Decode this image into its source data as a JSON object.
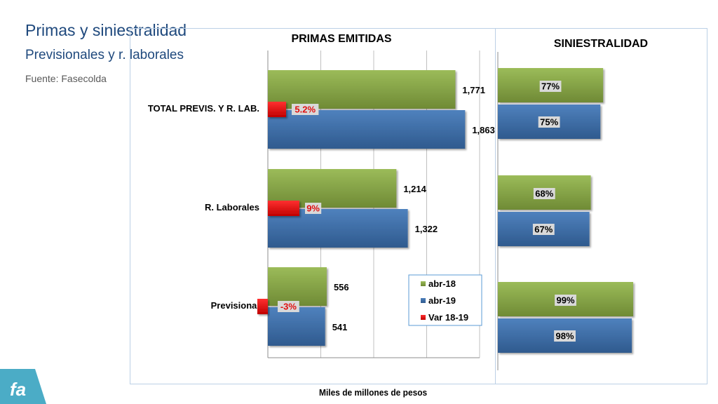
{
  "header": {
    "title": "Primas y siniestralidad",
    "subtitle": "Previsionales y r. laborales",
    "source": "Fuente: Fasecolda"
  },
  "footer": {
    "axis_caption": "Miles de millones de pesos"
  },
  "colors": {
    "green": "#77933c",
    "blue": "#376092",
    "red": "#e01010",
    "title_blue": "#1f497d",
    "label_bg": "#d9d9d9"
  },
  "chart_data": [
    {
      "type": "bar",
      "orientation": "horizontal",
      "title": "PRIMAS EMITIDAS",
      "categories": [
        "TOTAL  PREVIS. Y R. LAB.",
        "R. Laborales",
        "Previsional"
      ],
      "series": [
        {
          "name": "abr-18",
          "color": "#77933c",
          "values": [
            1771,
            1214,
            556
          ],
          "labels": [
            "1,771",
            "1,214",
            "556"
          ]
        },
        {
          "name": "abr-19",
          "color": "#376092",
          "values": [
            1863,
            1322,
            541
          ],
          "labels": [
            "1,863",
            "1,322",
            "541"
          ]
        },
        {
          "name": "Var 18-19",
          "color": "#e01010",
          "values": [
            5.2,
            9,
            -3
          ],
          "labels": [
            "5.2%",
            "9%",
            "-3%"
          ]
        }
      ],
      "xlim": [
        0,
        2000
      ],
      "grid": true,
      "legend": "bottom-right"
    },
    {
      "type": "bar",
      "orientation": "horizontal",
      "title": "SINIESTRALIDAD",
      "categories": [
        "TOTAL  PREVIS. Y R. LAB.",
        "R. Laborales",
        "Previsional"
      ],
      "series": [
        {
          "name": "abr-18",
          "color": "#77933c",
          "values": [
            77,
            68,
            99
          ],
          "labels": [
            "77%",
            "68%",
            "99%"
          ]
        },
        {
          "name": "abr-19",
          "color": "#376092",
          "values": [
            75,
            67,
            98
          ],
          "labels": [
            "75%",
            "67%",
            "98%"
          ]
        }
      ],
      "xlim": [
        0,
        100
      ],
      "grid": false
    }
  ]
}
